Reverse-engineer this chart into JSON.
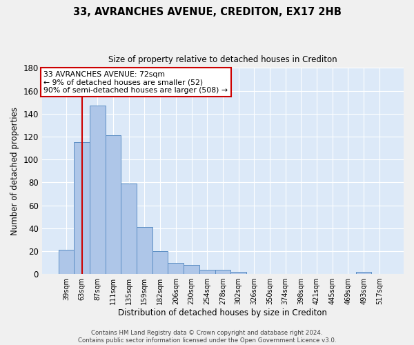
{
  "title_line1": "33, AVRANCHES AVENUE, CREDITON, EX17 2HB",
  "title_line2": "Size of property relative to detached houses in Crediton",
  "xlabel": "Distribution of detached houses by size in Crediton",
  "ylabel": "Number of detached properties",
  "bin_labels": [
    "39sqm",
    "63sqm",
    "87sqm",
    "111sqm",
    "135sqm",
    "159sqm",
    "182sqm",
    "206sqm",
    "230sqm",
    "254sqm",
    "278sqm",
    "302sqm",
    "326sqm",
    "350sqm",
    "374sqm",
    "398sqm",
    "421sqm",
    "445sqm",
    "469sqm",
    "493sqm",
    "517sqm"
  ],
  "bar_values": [
    21,
    115,
    147,
    121,
    79,
    41,
    20,
    10,
    8,
    4,
    4,
    2,
    0,
    0,
    0,
    0,
    0,
    0,
    0,
    2,
    0
  ],
  "bar_color": "#aec6e8",
  "bar_edge_color": "#5b8ec4",
  "background_color": "#dce9f8",
  "grid_color": "#ffffff",
  "fig_background": "#f0f0f0",
  "vline_x_index": 1,
  "vline_color": "#cc0000",
  "ylim": [
    0,
    180
  ],
  "yticks": [
    0,
    20,
    40,
    60,
    80,
    100,
    120,
    140,
    160,
    180
  ],
  "annotation_text": "33 AVRANCHES AVENUE: 72sqm\n← 9% of detached houses are smaller (52)\n90% of semi-detached houses are larger (508) →",
  "annotation_box_color": "#ffffff",
  "annotation_box_edge": "#cc0000",
  "footer_line1": "Contains HM Land Registry data © Crown copyright and database right 2024.",
  "footer_line2": "Contains public sector information licensed under the Open Government Licence v3.0."
}
